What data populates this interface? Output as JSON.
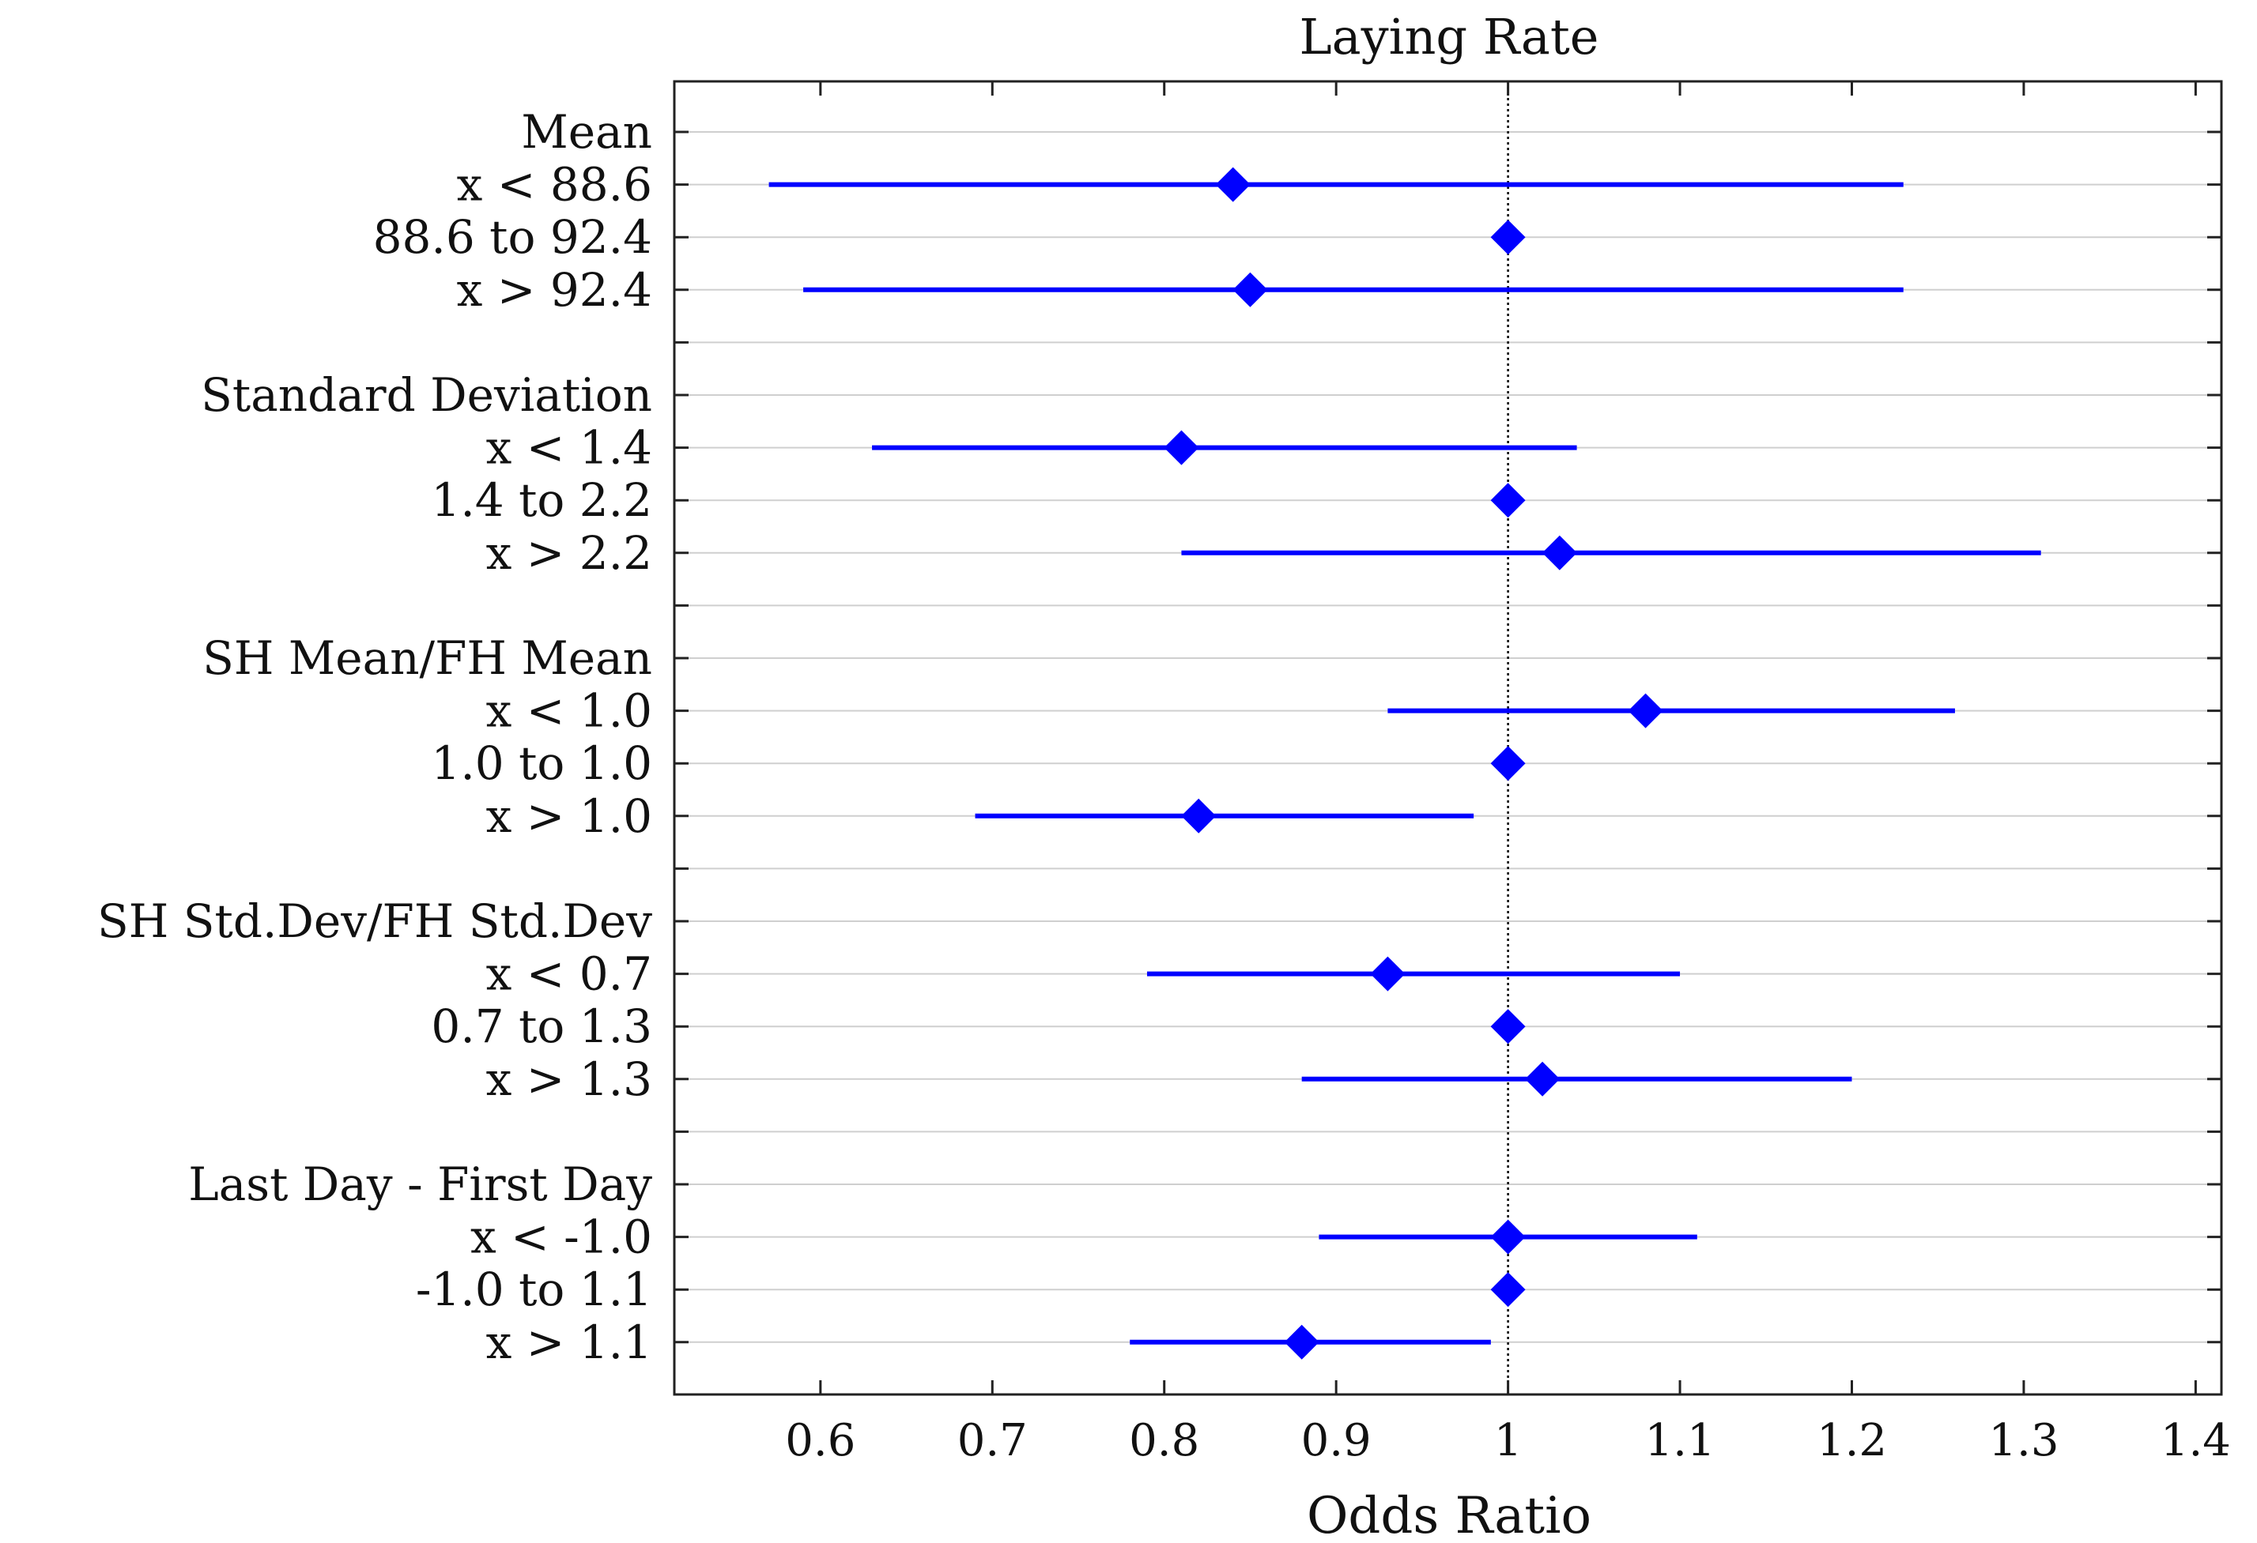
{
  "chart_data": {
    "type": "forest",
    "title": "Laying Rate",
    "xlabel": "Odds Ratio",
    "ylabel": "",
    "xlim": [
      0.515,
      1.415
    ],
    "xticks": [
      0.6,
      0.7,
      0.8,
      0.9,
      1,
      1.1,
      1.2,
      1.3,
      1.4
    ],
    "xtick_labels": [
      "0.6",
      "0.7",
      "0.8",
      "0.9",
      "1",
      "1.1",
      "1.2",
      "1.3",
      "1.4"
    ],
    "reference_line": 1,
    "rows": [
      {
        "label": "Mean",
        "kind": "header"
      },
      {
        "label": "x < 88.6",
        "or": 0.84,
        "lo": 0.57,
        "hi": 1.23
      },
      {
        "label": "88.6 to 92.4",
        "or": 1.0,
        "lo": 1.0,
        "hi": 1.0
      },
      {
        "label": "x > 92.4",
        "or": 0.85,
        "lo": 0.59,
        "hi": 1.23
      },
      {
        "label": "",
        "kind": "spacer"
      },
      {
        "label": "Standard Deviation",
        "kind": "header"
      },
      {
        "label": "x < 1.4",
        "or": 0.81,
        "lo": 0.63,
        "hi": 1.04
      },
      {
        "label": "1.4 to 2.2",
        "or": 1.0,
        "lo": 1.0,
        "hi": 1.0
      },
      {
        "label": "x > 2.2",
        "or": 1.03,
        "lo": 0.81,
        "hi": 1.31
      },
      {
        "label": "",
        "kind": "spacer"
      },
      {
        "label": "SH Mean/FH Mean",
        "kind": "header"
      },
      {
        "label": "x < 1.0",
        "or": 1.08,
        "lo": 0.93,
        "hi": 1.26
      },
      {
        "label": "1.0 to 1.0",
        "or": 1.0,
        "lo": 1.0,
        "hi": 1.0
      },
      {
        "label": "x > 1.0",
        "or": 0.82,
        "lo": 0.69,
        "hi": 0.98
      },
      {
        "label": "",
        "kind": "spacer"
      },
      {
        "label": "SH Std.Dev/FH Std.Dev",
        "kind": "header"
      },
      {
        "label": "x < 0.7",
        "or": 0.93,
        "lo": 0.79,
        "hi": 1.1
      },
      {
        "label": "0.7 to 1.3",
        "or": 1.0,
        "lo": 1.0,
        "hi": 1.0
      },
      {
        "label": "x > 1.3",
        "or": 1.02,
        "lo": 0.88,
        "hi": 1.2
      },
      {
        "label": "",
        "kind": "spacer"
      },
      {
        "label": "Last Day - First Day",
        "kind": "header"
      },
      {
        "label": "x < -1.0",
        "or": 1.0,
        "lo": 0.89,
        "hi": 1.11
      },
      {
        "label": "-1.0 to 1.1",
        "or": 1.0,
        "lo": 1.0,
        "hi": 1.0
      },
      {
        "label": "x > 1.1",
        "or": 0.88,
        "lo": 0.78,
        "hi": 0.99
      }
    ],
    "colors": {
      "marker": "#0000ff",
      "axis": "#222222",
      "gridline": "#cfcfcf",
      "reference": "#000000"
    }
  }
}
